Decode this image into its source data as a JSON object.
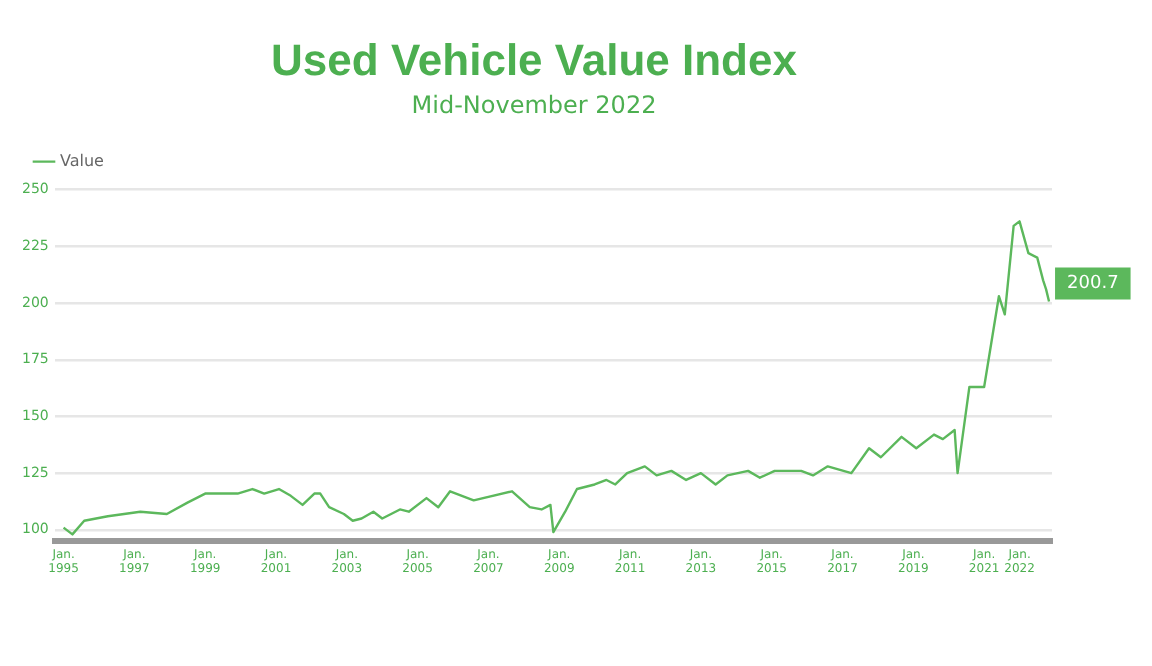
{
  "chart_data": {
    "type": "line",
    "title": "Used Vehicle Value Index",
    "subtitle": "Mid-November 2022",
    "x": [
      "1995-01",
      "1995-04",
      "1995-08",
      "1996-04",
      "1997-03",
      "1997-12",
      "1998-07",
      "1999-01",
      "1999-12",
      "2000-05",
      "2000-09",
      "2001-02",
      "2001-06",
      "2001-10",
      "2002-02",
      "2002-04",
      "2002-07",
      "2002-12",
      "2003-03",
      "2003-06",
      "2003-10",
      "2004-01",
      "2004-07",
      "2004-10",
      "2005-04",
      "2005-08",
      "2005-12",
      "2006-08",
      "2007-09",
      "2008-03",
      "2008-07",
      "2008-10",
      "2008-11",
      "2009-03",
      "2009-07",
      "2009-10",
      "2010-01",
      "2010-05",
      "2010-08",
      "2010-12",
      "2011-06",
      "2011-10",
      "2012-03",
      "2012-08",
      "2013-01",
      "2013-06",
      "2013-10",
      "2014-05",
      "2014-09",
      "2015-02",
      "2015-11",
      "2016-03",
      "2016-08",
      "2017-04",
      "2017-10",
      "2018-02",
      "2018-09",
      "2019-02",
      "2019-08",
      "2019-11",
      "2020-03",
      "2020-04",
      "2020-08",
      "2021-01",
      "2021-06",
      "2021-08",
      "2021-11",
      "2022-01",
      "2022-04",
      "2022-07",
      "2022-09",
      "2022-10",
      "2022-11"
    ],
    "series": [
      {
        "name": "Value",
        "color": "#5cb85c",
        "values": [
          101,
          98,
          104,
          106,
          108,
          107,
          112,
          116,
          116,
          118,
          116,
          118,
          115,
          111,
          116,
          116,
          110,
          107,
          104,
          105,
          108,
          105,
          109,
          108,
          114,
          110,
          117,
          113,
          117,
          110,
          109,
          111,
          99,
          108,
          118,
          119,
          120,
          122,
          120,
          125,
          128,
          124,
          126,
          122,
          125,
          120,
          124,
          126,
          123,
          126,
          126,
          124,
          128,
          125,
          136,
          132,
          141,
          136,
          142,
          140,
          144,
          125,
          163,
          163,
          203,
          195,
          234,
          236,
          222,
          220,
          210,
          206,
          200.7
        ],
        "value_labels": [
          null,
          null,
          null,
          null,
          null,
          null,
          null,
          null,
          null,
          null,
          null,
          null,
          null,
          null,
          null,
          null,
          null,
          null,
          null,
          null,
          null,
          null,
          null,
          null,
          null,
          null,
          null,
          null,
          null,
          null,
          null,
          null,
          null,
          null,
          null,
          null,
          null,
          null,
          null,
          null,
          null,
          null,
          null,
          null,
          null,
          null,
          null,
          null,
          null,
          null,
          null,
          null,
          null,
          null,
          null,
          null,
          null,
          null,
          null,
          null,
          null,
          null,
          null,
          null,
          null,
          null,
          null,
          null,
          null,
          null,
          null,
          null,
          "200.7"
        ]
      }
    ],
    "xlim": [
      "1994-10",
      "2022-12"
    ],
    "xticks": [
      {
        "value": "1995-01",
        "label": "Jan. 1995"
      },
      {
        "value": "1997-01",
        "label": "Jan. 1997"
      },
      {
        "value": "1999-01",
        "label": "Jan. 1999"
      },
      {
        "value": "2001-01",
        "label": "Jan. 2001"
      },
      {
        "value": "2003-01",
        "label": "Jan. 2003"
      },
      {
        "value": "2005-01",
        "label": "Jan. 2005"
      },
      {
        "value": "2007-01",
        "label": "Jan. 2007"
      },
      {
        "value": "2009-01",
        "label": "Jan. 2009"
      },
      {
        "value": "2011-01",
        "label": "Jan. 2011"
      },
      {
        "value": "2013-01",
        "label": "Jan. 2013"
      },
      {
        "value": "2015-01",
        "label": "Jan. 2015"
      },
      {
        "value": "2017-01",
        "label": "Jan. 2017"
      },
      {
        "value": "2019-01",
        "label": "Jan. 2019"
      },
      {
        "value": "2021-01",
        "label": "Jan. 2021"
      },
      {
        "value": "2022-01",
        "label": "Jan. 2022"
      }
    ],
    "ylim": [
      95,
      250
    ],
    "yticks": [
      100,
      125,
      150,
      175,
      200,
      225,
      250
    ],
    "grid": "y",
    "legend": "top left",
    "marker": "none",
    "line_style": "solid"
  }
}
